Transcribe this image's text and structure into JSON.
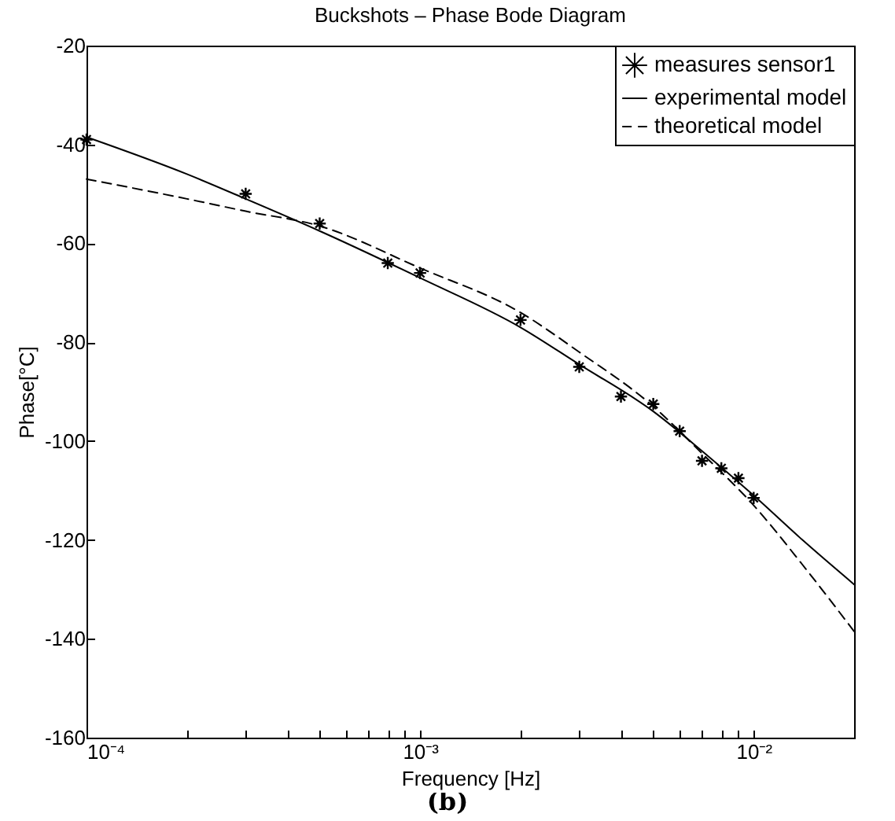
{
  "chart_data": {
    "type": "line",
    "title": "Buckshots – Phase Bode Diagram",
    "xlabel": "Frequency [Hz]",
    "ylabel": "Phase[°C]",
    "log": "x",
    "xlim": [
      0.0001,
      0.02
    ],
    "ylim": [
      -160,
      -20
    ],
    "xticks": [
      {
        "value": 0.0001,
        "label": "10⁻⁴"
      },
      {
        "value": 0.0002,
        "label": null
      },
      {
        "value": 0.0003,
        "label": null
      },
      {
        "value": 0.0004,
        "label": null
      },
      {
        "value": 0.0005,
        "label": null
      },
      {
        "value": 0.0006,
        "label": null
      },
      {
        "value": 0.0007,
        "label": null
      },
      {
        "value": 0.0008,
        "label": null
      },
      {
        "value": 0.0009,
        "label": null
      },
      {
        "value": 0.001,
        "label": "10⁻³"
      },
      {
        "value": 0.002,
        "label": null
      },
      {
        "value": 0.003,
        "label": null
      },
      {
        "value": 0.004,
        "label": null
      },
      {
        "value": 0.005,
        "label": null
      },
      {
        "value": 0.006,
        "label": null
      },
      {
        "value": 0.007,
        "label": null
      },
      {
        "value": 0.008,
        "label": null
      },
      {
        "value": 0.009,
        "label": null
      },
      {
        "value": 0.01,
        "label": "10⁻²"
      },
      {
        "value": 0.02,
        "label": null
      }
    ],
    "yticks": [
      -160,
      -140,
      -120,
      -100,
      -80,
      -60,
      -40,
      -20
    ],
    "grid": false,
    "legend": "top right",
    "annotations": [
      "(b)"
    ],
    "series": [
      {
        "name": "measures sensor1",
        "type": "scatter",
        "marker": "cross",
        "color": "#000000",
        "x": [
          0.0001,
          0.0003,
          0.0005,
          0.0008,
          0.001,
          0.002,
          0.003,
          0.004,
          0.005,
          0.006,
          0.007,
          0.008,
          0.009,
          0.01
        ],
        "values": [
          -39,
          -50,
          -56,
          -64,
          -66,
          -75.5,
          -85,
          -91,
          -92.5,
          -98,
          -104,
          -105.5,
          -107.5,
          -111.5
        ]
      },
      {
        "name": "experimental model",
        "line_style": "solid",
        "color": "#000000",
        "x": [
          0.0001,
          0.0002,
          0.0003,
          0.0005,
          0.001,
          0.002,
          0.003,
          0.005,
          0.007,
          0.01,
          0.014,
          0.02
        ],
        "values": [
          -38.5,
          -46,
          -51,
          -57.5,
          -67,
          -77,
          -84.5,
          -94,
          -102,
          -111,
          -120,
          -129
        ]
      },
      {
        "name": "theoretical model",
        "line_style": "dashed",
        "color": "#000000",
        "x": [
          0.0001,
          0.0002,
          0.0003,
          0.0005,
          0.001,
          0.002,
          0.003,
          0.005,
          0.007,
          0.01,
          0.014,
          0.02
        ],
        "values": [
          -47,
          -51,
          -53.5,
          -56.5,
          -65,
          -74,
          -82,
          -93,
          -102.5,
          -113,
          -125,
          -138.5
        ]
      }
    ]
  }
}
